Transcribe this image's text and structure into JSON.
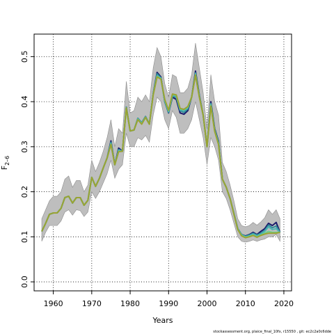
{
  "chart_data": {
    "type": "line",
    "xlabel": "Years",
    "ylabel_main": "F",
    "ylabel_sub": "2–6",
    "xlim": [
      1955,
      2022
    ],
    "ylim": [
      -0.02,
      0.55
    ],
    "x_ticks": [
      1960,
      1970,
      1980,
      1990,
      2000,
      2010,
      2020
    ],
    "y_ticks": [
      0.0,
      0.1,
      0.2,
      0.3,
      0.4,
      0.5
    ],
    "y_tick_labels": [
      "0.0",
      "0.1",
      "0.2",
      "0.3",
      "0.4",
      "0.5"
    ],
    "grid": "dotted",
    "footer": "stockassessment.org, plaice_final_10fx, r15550 , git: ec2c2a0c6dde",
    "colors": {
      "band": "#bebebe",
      "band_edge": "#8c8c8c",
      "series": [
        "#1b1b6b",
        "#2f8c9a",
        "#4db3b3",
        "#6fcf8a",
        "#9aa332"
      ]
    },
    "x": [
      1957,
      1958,
      1959,
      1960,
      1961,
      1962,
      1963,
      1964,
      1965,
      1966,
      1967,
      1968,
      1969,
      1970,
      1971,
      1972,
      1973,
      1974,
      1975,
      1976,
      1977,
      1978,
      1979,
      1980,
      1981,
      1982,
      1983,
      1984,
      1985,
      1986,
      1987,
      1988,
      1989,
      1990,
      1991,
      1992,
      1993,
      1994,
      1995,
      1996,
      1997,
      1998,
      1999,
      2000,
      2001,
      2002,
      2003,
      2004,
      2005,
      2006,
      2007,
      2008,
      2009,
      2010,
      2011,
      2012,
      2013,
      2014,
      2015,
      2016,
      2017,
      2018,
      2019
    ],
    "band_lower": [
      0.09,
      0.11,
      0.125,
      0.125,
      0.125,
      0.135,
      0.155,
      0.16,
      0.148,
      0.16,
      0.158,
      0.145,
      0.155,
      0.2,
      0.185,
      0.2,
      0.22,
      0.24,
      0.27,
      0.23,
      0.25,
      0.26,
      0.33,
      0.3,
      0.3,
      0.32,
      0.315,
      0.325,
      0.31,
      0.37,
      0.41,
      0.4,
      0.36,
      0.34,
      0.38,
      0.365,
      0.33,
      0.33,
      0.34,
      0.36,
      0.4,
      0.36,
      0.32,
      0.26,
      0.32,
      0.3,
      0.27,
      0.2,
      0.185,
      0.16,
      0.13,
      0.1,
      0.09,
      0.088,
      0.09,
      0.093,
      0.09,
      0.093,
      0.095,
      0.1,
      0.1,
      0.105,
      0.09
    ],
    "band_upper": [
      0.14,
      0.16,
      0.18,
      0.19,
      0.19,
      0.2,
      0.228,
      0.235,
      0.21,
      0.225,
      0.225,
      0.2,
      0.215,
      0.27,
      0.245,
      0.265,
      0.29,
      0.32,
      0.36,
      0.3,
      0.34,
      0.33,
      0.445,
      0.375,
      0.38,
      0.41,
      0.4,
      0.415,
      0.4,
      0.475,
      0.52,
      0.5,
      0.44,
      0.41,
      0.46,
      0.455,
      0.42,
      0.42,
      0.43,
      0.46,
      0.53,
      0.475,
      0.42,
      0.34,
      0.46,
      0.4,
      0.37,
      0.265,
      0.245,
      0.215,
      0.18,
      0.14,
      0.125,
      0.122,
      0.125,
      0.132,
      0.126,
      0.133,
      0.142,
      0.16,
      0.15,
      0.16,
      0.14
    ],
    "series": [
      {
        "values": [
          0.112,
          0.13,
          0.15,
          0.153,
          0.153,
          0.163,
          0.187,
          0.19,
          0.175,
          0.187,
          0.187,
          0.17,
          0.181,
          0.232,
          0.212,
          0.23,
          0.253,
          0.275,
          0.313,
          0.26,
          0.297,
          0.29,
          0.388,
          0.335,
          0.337,
          0.363,
          0.353,
          0.367,
          0.35,
          0.418,
          0.465,
          0.455,
          0.4,
          0.375,
          0.41,
          0.405,
          0.375,
          0.372,
          0.38,
          0.41,
          0.468,
          0.415,
          0.37,
          0.3,
          0.4,
          0.34,
          0.312,
          0.228,
          0.21,
          0.185,
          0.152,
          0.118,
          0.105,
          0.102,
          0.105,
          0.11,
          0.105,
          0.112,
          0.118,
          0.13,
          0.125,
          0.132,
          0.11
        ]
      },
      {
        "values": [
          0.112,
          0.13,
          0.15,
          0.153,
          0.153,
          0.163,
          0.187,
          0.19,
          0.175,
          0.187,
          0.187,
          0.17,
          0.181,
          0.232,
          0.212,
          0.23,
          0.253,
          0.275,
          0.31,
          0.26,
          0.294,
          0.29,
          0.388,
          0.335,
          0.337,
          0.363,
          0.353,
          0.367,
          0.35,
          0.418,
          0.462,
          0.453,
          0.4,
          0.376,
          0.412,
          0.41,
          0.38,
          0.376,
          0.384,
          0.41,
          0.464,
          0.413,
          0.37,
          0.3,
          0.396,
          0.338,
          0.31,
          0.228,
          0.21,
          0.185,
          0.152,
          0.118,
          0.105,
          0.101,
          0.104,
          0.108,
          0.104,
          0.108,
          0.114,
          0.126,
          0.12,
          0.124,
          0.11
        ]
      },
      {
        "values": [
          0.112,
          0.13,
          0.15,
          0.153,
          0.153,
          0.163,
          0.187,
          0.19,
          0.175,
          0.187,
          0.187,
          0.17,
          0.181,
          0.232,
          0.212,
          0.23,
          0.253,
          0.275,
          0.308,
          0.26,
          0.292,
          0.29,
          0.387,
          0.335,
          0.337,
          0.362,
          0.352,
          0.366,
          0.35,
          0.417,
          0.458,
          0.452,
          0.402,
          0.378,
          0.414,
          0.412,
          0.382,
          0.38,
          0.386,
          0.41,
          0.462,
          0.412,
          0.37,
          0.3,
          0.394,
          0.336,
          0.308,
          0.228,
          0.21,
          0.185,
          0.151,
          0.117,
          0.104,
          0.1,
          0.102,
          0.106,
          0.102,
          0.106,
          0.112,
          0.122,
          0.116,
          0.118,
          0.11
        ]
      },
      {
        "values": [
          0.112,
          0.13,
          0.15,
          0.153,
          0.153,
          0.163,
          0.187,
          0.19,
          0.175,
          0.187,
          0.187,
          0.17,
          0.181,
          0.232,
          0.212,
          0.23,
          0.253,
          0.275,
          0.306,
          0.26,
          0.29,
          0.29,
          0.386,
          0.335,
          0.337,
          0.361,
          0.351,
          0.365,
          0.35,
          0.416,
          0.456,
          0.451,
          0.404,
          0.38,
          0.416,
          0.414,
          0.384,
          0.382,
          0.388,
          0.41,
          0.46,
          0.411,
          0.37,
          0.3,
          0.392,
          0.335,
          0.306,
          0.228,
          0.21,
          0.185,
          0.151,
          0.117,
          0.103,
          0.099,
          0.101,
          0.104,
          0.1,
          0.104,
          0.108,
          0.112,
          0.11,
          0.11,
          0.11
        ]
      },
      {
        "values": [
          0.112,
          0.13,
          0.15,
          0.153,
          0.153,
          0.163,
          0.187,
          0.19,
          0.175,
          0.187,
          0.187,
          0.17,
          0.181,
          0.232,
          0.212,
          0.23,
          0.253,
          0.275,
          0.305,
          0.26,
          0.289,
          0.29,
          0.386,
          0.335,
          0.337,
          0.36,
          0.35,
          0.365,
          0.35,
          0.415,
          0.455,
          0.45,
          0.405,
          0.381,
          0.417,
          0.415,
          0.385,
          0.383,
          0.389,
          0.41,
          0.459,
          0.41,
          0.37,
          0.3,
          0.39,
          0.334,
          0.305,
          0.228,
          0.21,
          0.185,
          0.15,
          0.116,
          0.102,
          0.098,
          0.1,
          0.103,
          0.099,
          0.103,
          0.106,
          0.108,
          0.108,
          0.108,
          0.11
        ]
      }
    ]
  }
}
